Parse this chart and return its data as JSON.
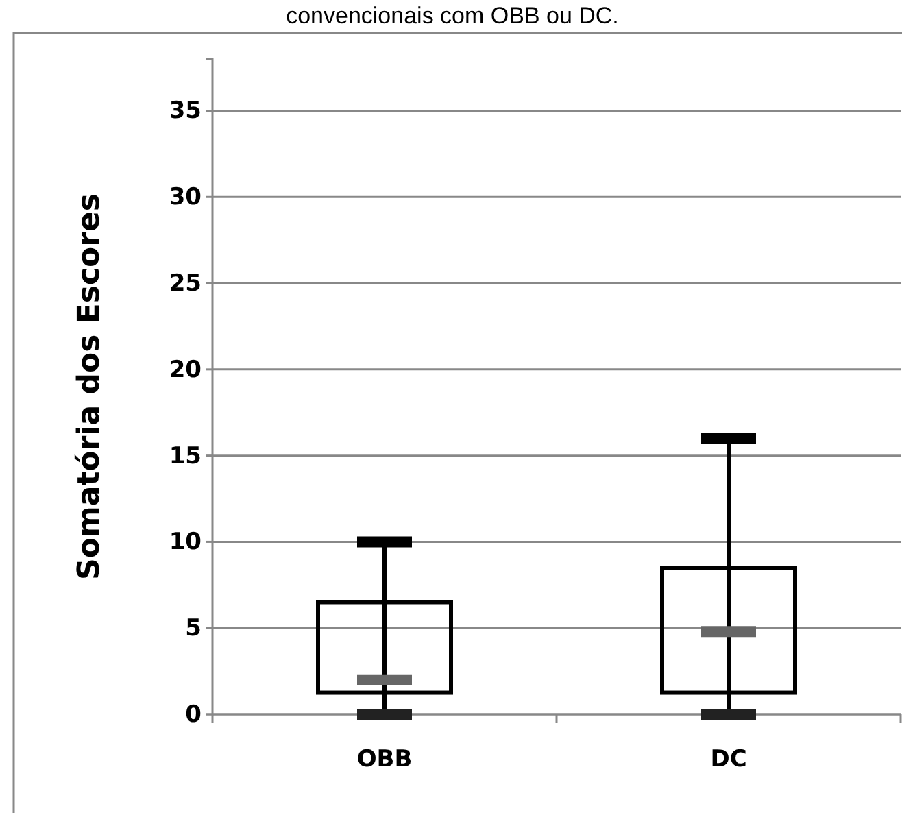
{
  "chart_data": {
    "type": "box",
    "title": "convencionais com OBB ou DC.",
    "ylabel": "Somatória dos Escores",
    "categories": [
      "OBB",
      "DC"
    ],
    "boxes": [
      {
        "low": 0,
        "q1": 1.25,
        "median": 2,
        "q3": 6.5,
        "high": 10
      },
      {
        "low": 0,
        "q1": 1.25,
        "median": 4.8,
        "q3": 8.5,
        "high": 16
      }
    ],
    "ylim": [
      0,
      38
    ],
    "yticks": [
      0,
      5,
      10,
      15,
      20,
      25,
      30,
      35
    ],
    "grid": "y"
  }
}
